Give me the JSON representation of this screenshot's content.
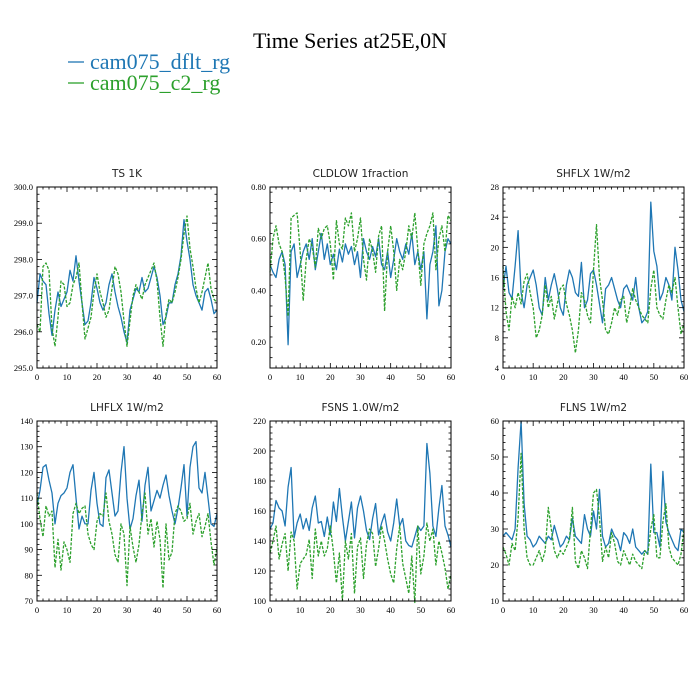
{
  "figure": {
    "title": "Time Series at25E,0N"
  },
  "legend": {
    "entries": [
      {
        "label": "cam075_dflt_rg",
        "color": "#1f77b4",
        "style": "solid"
      },
      {
        "label": "cam075_c2_rg",
        "color": "#2ca02c",
        "style": "dashed"
      }
    ]
  },
  "chart_data": [
    {
      "type": "line",
      "title": "TS   1K",
      "xlim": [
        0,
        60
      ],
      "ylim": [
        295.0,
        300.0
      ],
      "xticks": [
        0,
        10,
        20,
        30,
        40,
        50,
        60
      ],
      "yticks": [
        295.0,
        296.0,
        297.0,
        298.0,
        299.0,
        300.0
      ],
      "ytick_labels": [
        "295.0",
        "296.0",
        "297.0",
        "298.0",
        "299.0",
        "300.0"
      ],
      "series": [
        {
          "name": "cam075_dflt_rg",
          "color": "#1f77b4",
          "values": [
            296.8,
            297.6,
            297.4,
            297.3,
            296.5,
            295.9,
            296.6,
            297.1,
            296.7,
            296.9,
            297.1,
            297.7,
            297.4,
            298.1,
            297.4,
            296.8,
            296.2,
            296.3,
            296.8,
            297.5,
            297.2,
            296.8,
            296.6,
            296.8,
            297.3,
            297.6,
            297.1,
            296.7,
            296.4,
            296.0,
            295.7,
            296.6,
            296.9,
            297.2,
            297.1,
            297.5,
            297.1,
            297.2,
            297.5,
            297.8,
            297.5,
            297.0,
            296.2,
            296.4,
            296.8,
            296.8,
            297.3,
            297.6,
            298.1,
            299.1,
            298.5,
            298.0,
            297.3,
            297.0,
            296.8,
            296.6,
            297.1,
            297.2,
            296.9,
            296.5,
            296.6
          ]
        },
        {
          "name": "cam075_c2_rg",
          "color": "#2ca02c",
          "values": [
            296.2,
            296.0,
            297.8,
            297.9,
            297.7,
            296.1,
            295.6,
            296.4,
            297.4,
            297.3,
            296.7,
            296.8,
            297.3,
            297.5,
            297.9,
            296.8,
            295.8,
            296.1,
            296.4,
            297.1,
            297.6,
            297.1,
            296.8,
            296.4,
            296.6,
            297.2,
            297.8,
            297.6,
            297.1,
            296.3,
            295.6,
            296.3,
            297.0,
            297.3,
            297.1,
            296.9,
            297.3,
            297.5,
            297.7,
            297.9,
            297.4,
            296.4,
            295.6,
            296.5,
            296.9,
            296.8,
            297.1,
            297.5,
            298.0,
            298.7,
            299.2,
            298.3,
            297.8,
            297.2,
            296.8,
            297.1,
            297.5,
            297.9,
            297.2,
            296.9,
            296.8
          ]
        }
      ]
    },
    {
      "type": "line",
      "title": "CLDLOW   1fraction",
      "xlim": [
        0,
        60
      ],
      "ylim": [
        0.1,
        0.8
      ],
      "xticks": [
        0,
        10,
        20,
        30,
        40,
        50,
        60
      ],
      "yticks": [
        0.2,
        0.4,
        0.6,
        0.8
      ],
      "ytick_labels": [
        "0.20",
        "0.40",
        "0.60",
        "0.80"
      ],
      "series": [
        {
          "name": "cam075_dflt_rg",
          "color": "#1f77b4",
          "values": [
            0.5,
            0.47,
            0.45,
            0.52,
            0.55,
            0.5,
            0.19,
            0.55,
            0.58,
            0.45,
            0.5,
            0.55,
            0.58,
            0.52,
            0.6,
            0.48,
            0.55,
            0.62,
            0.52,
            0.58,
            0.5,
            0.54,
            0.48,
            0.56,
            0.51,
            0.58,
            0.54,
            0.57,
            0.5,
            0.55,
            0.45,
            0.6,
            0.55,
            0.52,
            0.57,
            0.53,
            0.6,
            0.5,
            0.48,
            0.55,
            0.45,
            0.52,
            0.6,
            0.55,
            0.52,
            0.58,
            0.54,
            0.62,
            0.5,
            0.55,
            0.48,
            0.55,
            0.29,
            0.5,
            0.55,
            0.65,
            0.34,
            0.4,
            0.55,
            0.6,
            0.58
          ]
        },
        {
          "name": "cam075_c2_rg",
          "color": "#2ca02c",
          "values": [
            0.47,
            0.6,
            0.65,
            0.58,
            0.55,
            0.45,
            0.3,
            0.68,
            0.69,
            0.7,
            0.55,
            0.36,
            0.52,
            0.6,
            0.57,
            0.49,
            0.64,
            0.6,
            0.64,
            0.65,
            0.58,
            0.44,
            0.67,
            0.58,
            0.56,
            0.68,
            0.65,
            0.7,
            0.55,
            0.6,
            0.68,
            0.52,
            0.44,
            0.6,
            0.55,
            0.47,
            0.61,
            0.65,
            0.32,
            0.55,
            0.65,
            0.55,
            0.4,
            0.52,
            0.48,
            0.55,
            0.65,
            0.6,
            0.7,
            0.56,
            0.42,
            0.58,
            0.62,
            0.65,
            0.7,
            0.48,
            0.6,
            0.65,
            0.55,
            0.69,
            0.67
          ]
        }
      ]
    },
    {
      "type": "line",
      "title": "SHFLX   1W/m2",
      "xlim": [
        0,
        60
      ],
      "ylim": [
        4,
        28
      ],
      "xticks": [
        0,
        10,
        20,
        30,
        40,
        50,
        60
      ],
      "yticks": [
        4,
        8,
        12,
        16,
        20,
        24,
        28
      ],
      "ytick_labels": [
        "4",
        "8",
        "12",
        "16",
        "20",
        "24",
        "28"
      ],
      "series": [
        {
          "name": "cam075_dflt_rg",
          "color": "#1f77b4",
          "values": [
            14.5,
            17.5,
            14.0,
            13.2,
            17.5,
            22.2,
            14.0,
            12.0,
            15.0,
            16.0,
            17.0,
            15.0,
            12.0,
            11.0,
            16.0,
            13.0,
            15.0,
            16.5,
            14.5,
            12.0,
            11.0,
            15.0,
            17.0,
            16.0,
            14.0,
            13.5,
            18.0,
            12.0,
            13.0,
            16.5,
            17.0,
            15.0,
            12.5,
            10.0,
            14.5,
            15.0,
            16.0,
            14.5,
            13.0,
            12.0,
            14.5,
            15.0,
            14.0,
            13.0,
            16.0,
            12.0,
            10.0,
            10.5,
            11.5,
            26.0,
            19.5,
            17.5,
            13.0,
            14.0,
            16.0,
            15.0,
            13.0,
            20.0,
            17.0,
            13.0,
            11.5
          ]
        },
        {
          "name": "cam075_c2_rg",
          "color": "#2ca02c",
          "values": [
            17.5,
            11.5,
            9.0,
            13.5,
            12.0,
            14.0,
            12.5,
            15.5,
            16.5,
            14.0,
            12.0,
            8.0,
            9.0,
            11.0,
            15.0,
            12.0,
            13.5,
            10.5,
            12.5,
            14.5,
            15.0,
            12.5,
            11.0,
            9.0,
            6.0,
            9.0,
            14.0,
            13.0,
            11.0,
            10.0,
            17.0,
            23.0,
            16.0,
            13.0,
            9.0,
            8.5,
            10.0,
            12.0,
            11.0,
            13.0,
            13.5,
            10.0,
            12.0,
            14.5,
            13.0,
            12.0,
            11.0,
            10.5,
            10.0,
            14.5,
            17.0,
            12.0,
            11.0,
            10.5,
            13.0,
            15.0,
            14.0,
            16.0,
            12.0,
            8.5,
            10.0
          ]
        }
      ]
    },
    {
      "type": "line",
      "title": "LHFLX   1W/m2",
      "xlim": [
        0,
        60
      ],
      "ylim": [
        70,
        140
      ],
      "xticks": [
        0,
        10,
        20,
        30,
        40,
        50,
        60
      ],
      "yticks": [
        70,
        80,
        90,
        100,
        110,
        120,
        130,
        140
      ],
      "ytick_labels": [
        "70",
        "80",
        "90",
        "100",
        "110",
        "120",
        "130",
        "140"
      ],
      "series": [
        {
          "name": "cam075_dflt_rg",
          "color": "#1f77b4",
          "values": [
            107,
            113,
            122,
            123,
            117,
            112,
            100,
            108,
            111,
            112,
            114,
            120,
            123,
            110,
            98,
            103,
            100,
            100,
            113,
            120,
            108,
            100,
            99,
            118,
            121,
            112,
            103,
            105,
            120,
            130,
            110,
            98,
            102,
            111,
            117,
            101,
            115,
            122,
            105,
            109,
            113,
            110,
            115,
            119,
            111,
            105,
            100,
            106,
            114,
            123,
            103,
            122,
            130,
            132,
            114,
            112,
            120,
            110,
            100,
            99,
            104
          ]
        },
        {
          "name": "cam075_c2_rg",
          "color": "#2ca02c",
          "values": [
            112,
            102,
            95,
            107,
            103,
            105,
            83,
            94,
            82,
            93,
            90,
            85,
            104,
            108,
            104,
            106,
            107,
            96,
            92,
            90,
            101,
            104,
            103,
            112,
            101,
            96,
            88,
            85,
            100,
            96,
            76,
            99,
            91,
            85,
            92,
            104,
            112,
            96,
            102,
            91,
            101,
            94,
            75,
            100,
            86,
            89,
            104,
            107,
            105,
            101,
            102,
            108,
            96,
            101,
            104,
            95,
            99,
            104,
            93,
            84,
            91
          ]
        }
      ]
    },
    {
      "type": "line",
      "title": "FSNS   1.0W/m2",
      "xlim": [
        0,
        60
      ],
      "ylim": [
        100,
        220
      ],
      "xticks": [
        0,
        10,
        20,
        30,
        40,
        50,
        60
      ],
      "yticks": [
        100,
        120,
        140,
        160,
        180,
        200,
        220
      ],
      "ytick_labels": [
        "100",
        "120",
        "140",
        "160",
        "180",
        "200",
        "220"
      ],
      "series": [
        {
          "name": "cam075_dflt_rg",
          "color": "#1f77b4",
          "values": [
            148,
            152,
            167,
            162,
            160,
            150,
            176,
            189,
            142,
            152,
            158,
            148,
            155,
            147,
            162,
            170,
            152,
            153,
            143,
            156,
            144,
            166,
            153,
            175,
            156,
            140,
            153,
            166,
            142,
            162,
            170,
            160,
            147,
            141,
            155,
            165,
            144,
            152,
            158,
            146,
            140,
            152,
            168,
            150,
            155,
            140,
            137,
            136,
            143,
            150,
            147,
            150,
            205,
            185,
            150,
            143,
            162,
            177,
            150,
            144,
            136
          ]
        },
        {
          "name": "cam075_c2_rg",
          "color": "#2ca02c",
          "values": [
            132,
            140,
            150,
            128,
            138,
            145,
            120,
            146,
            140,
            108,
            125,
            128,
            131,
            141,
            115,
            148,
            130,
            140,
            130,
            135,
            150,
            133,
            112,
            132,
            100,
            140,
            128,
            145,
            105,
            136,
            142,
            115,
            138,
            148,
            145,
            123,
            135,
            150,
            140,
            128,
            118,
            112,
            135,
            150,
            125,
            115,
            105,
            130,
            99,
            150,
            118,
            130,
            152,
            140,
            148,
            124,
            140,
            132,
            122,
            108,
            118
          ]
        }
      ]
    },
    {
      "type": "line",
      "title": "FLNS   1W/m2",
      "xlim": [
        0,
        60
      ],
      "ylim": [
        10,
        60
      ],
      "xticks": [
        0,
        10,
        20,
        30,
        40,
        50,
        60
      ],
      "yticks": [
        10,
        20,
        30,
        40,
        50,
        60
      ],
      "ytick_labels": [
        "10",
        "20",
        "30",
        "40",
        "50",
        "60"
      ],
      "series": [
        {
          "name": "cam075_dflt_rg",
          "color": "#1f77b4",
          "values": [
            28,
            29,
            28,
            27,
            30,
            47,
            60,
            37,
            28,
            27,
            25,
            26,
            28,
            27,
            26,
            28,
            27,
            31,
            28,
            25,
            26,
            28,
            27,
            33,
            28,
            27,
            26,
            34,
            30,
            28,
            35,
            30,
            41,
            28,
            25,
            26,
            30,
            28,
            27,
            24,
            29,
            28,
            26,
            30,
            25,
            24,
            23,
            24,
            23,
            48,
            29,
            29,
            25,
            46,
            32,
            29,
            27,
            25,
            24,
            30,
            29
          ]
        },
        {
          "name": "cam075_c2_rg",
          "color": "#2ca02c",
          "values": [
            25,
            23,
            20,
            26,
            24,
            33,
            51,
            30,
            22,
            20,
            20,
            22,
            24,
            21,
            24,
            36,
            30,
            24,
            22,
            24,
            23,
            25,
            27,
            36,
            21,
            19,
            24,
            22,
            19,
            30,
            40,
            41,
            33,
            21,
            25,
            22,
            29,
            26,
            21,
            20,
            24,
            22,
            20,
            23,
            21,
            20,
            19,
            24,
            23,
            30,
            34,
            22,
            22,
            32,
            37,
            25,
            22,
            21,
            20,
            23,
            30
          ]
        }
      ]
    }
  ]
}
